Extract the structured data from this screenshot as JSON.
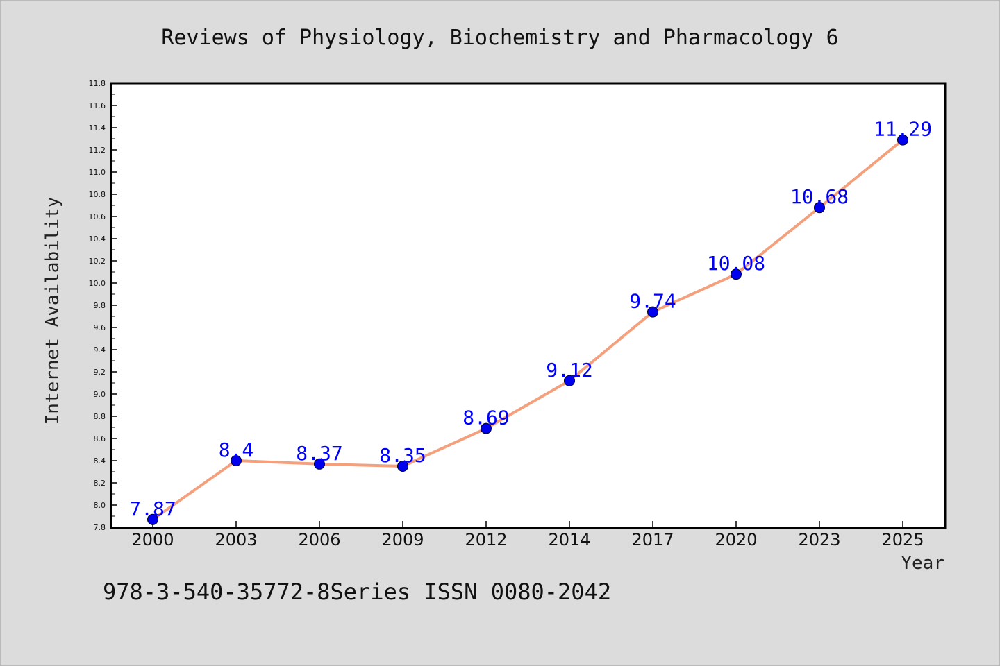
{
  "chart_data": {
    "type": "line",
    "title": "Reviews of Physiology, Biochemistry and Pharmacology 6",
    "xlabel": "Year",
    "ylabel": "Internet Availability",
    "categories": [
      "2000",
      "2003",
      "2006",
      "2009",
      "2012",
      "2014",
      "2017",
      "2020",
      "2023",
      "2025"
    ],
    "series": [
      {
        "values": [
          7.87,
          8.4,
          8.37,
          8.35,
          8.69,
          9.12,
          9.74,
          10.08,
          10.68,
          11.29
        ],
        "data_labels": [
          "7.87",
          "8.4",
          "8.37",
          "8.35",
          "8.69",
          "9.12",
          "9.74",
          "10.08",
          "10.68",
          "11.29"
        ]
      }
    ],
    "ylim": [
      7.8,
      11.8
    ],
    "yticks": [
      "7.8",
      "8.0",
      "8.2",
      "8.4",
      "8.6",
      "8.8",
      "9.0",
      "9.2",
      "9.4",
      "9.6",
      "9.8",
      "10.0",
      "10.2",
      "10.4",
      "10.6",
      "10.8",
      "11.0",
      "11.2",
      "11.4",
      "11.6",
      "11.8"
    ],
    "grid": false,
    "legend": "none",
    "colors": {
      "line": "#f4a07c",
      "marker": "#0000ee",
      "data_label": "#0000ff",
      "plot_background": "#ffffff",
      "page_background": "#dcdcdc"
    }
  },
  "footer": {
    "text": "978-3-540-35772-8Series ISSN 0080-2042"
  }
}
